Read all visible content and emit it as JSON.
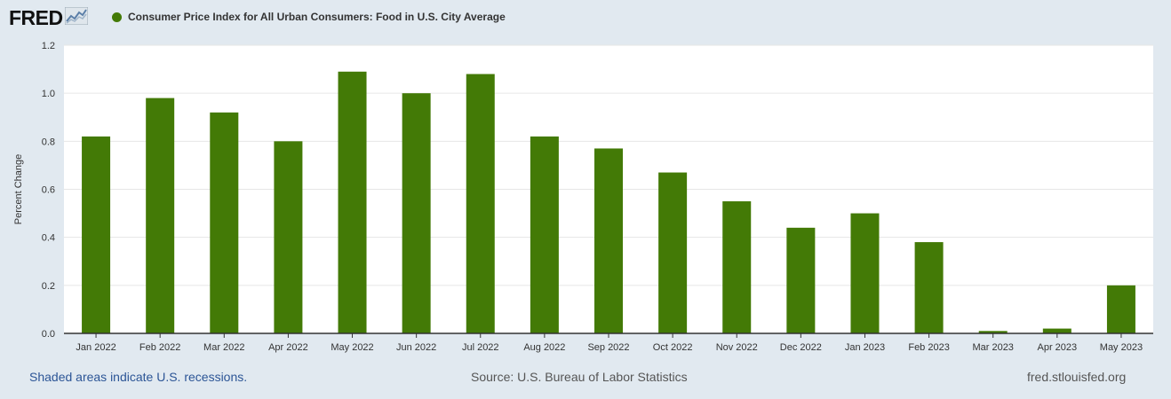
{
  "header": {
    "logo_text": "FRED",
    "logo_icon": "line-chart-icon"
  },
  "chart_data": {
    "type": "bar",
    "title": "Consumer Price Index for All Urban Consumers: Food in U.S. City Average",
    "ylabel": "Percent Change",
    "xlabel": "",
    "ylim": [
      0,
      1.2
    ],
    "yticks": [
      "0.0",
      "0.2",
      "0.4",
      "0.6",
      "0.8",
      "1.0",
      "1.2"
    ],
    "grid": true,
    "legend": "top-left",
    "color": "#437a06",
    "categories": [
      "Jan 2022",
      "Feb 2022",
      "Mar 2022",
      "Apr 2022",
      "May 2022",
      "Jun 2022",
      "Jul 2022",
      "Aug 2022",
      "Sep 2022",
      "Oct 2022",
      "Nov 2022",
      "Dec 2022",
      "Jan 2023",
      "Feb 2023",
      "Mar 2023",
      "Apr 2023",
      "May 2023"
    ],
    "values": [
      0.82,
      0.98,
      0.92,
      0.8,
      1.09,
      1.0,
      1.08,
      0.82,
      0.77,
      0.67,
      0.55,
      0.44,
      0.5,
      0.38,
      0.01,
      0.02,
      0.2
    ]
  },
  "footer": {
    "recessions": "Shaded areas indicate U.S. recessions.",
    "source": "Source: U.S. Bureau of Labor Statistics",
    "url": "fred.stlouisfed.org"
  }
}
